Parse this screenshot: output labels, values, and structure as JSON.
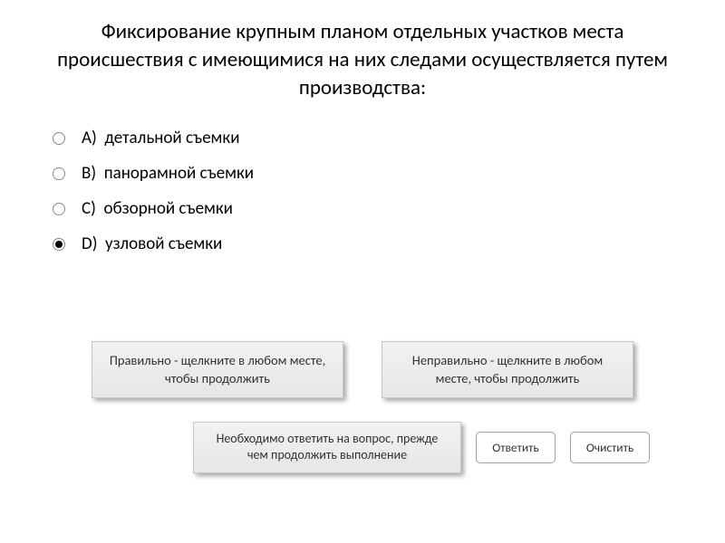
{
  "question": {
    "title": "Фиксирование крупным планом отдельных участков места происшествия с имеющимися на них следами осуществляется путем производства:",
    "options": [
      {
        "letter": "A)",
        "text": "детальной съемки",
        "selected": false
      },
      {
        "letter": "B)",
        "text": "панорамной съемки",
        "selected": false
      },
      {
        "letter": "C)",
        "text": "обзорной съемки",
        "selected": false
      },
      {
        "letter": "D)",
        "text": "узловой съемки",
        "selected": true
      }
    ]
  },
  "feedback": {
    "correct": "Правильно - щелкните в любом месте, чтобы продолжить",
    "incorrect": "Неправильно - щелкните в любом месте, чтобы продолжить",
    "hint": "Необходимо ответить на вопрос, прежде чем продолжить выполнение"
  },
  "buttons": {
    "answer": "Ответить",
    "clear": "Очистить"
  },
  "colors": {
    "background": "#ffffff",
    "text": "#000000",
    "box_bg_top": "#f2f2f2",
    "box_bg_bottom": "#e6e6e6",
    "box_border": "#c8c8c8",
    "button_border": "#a0a0a0"
  }
}
